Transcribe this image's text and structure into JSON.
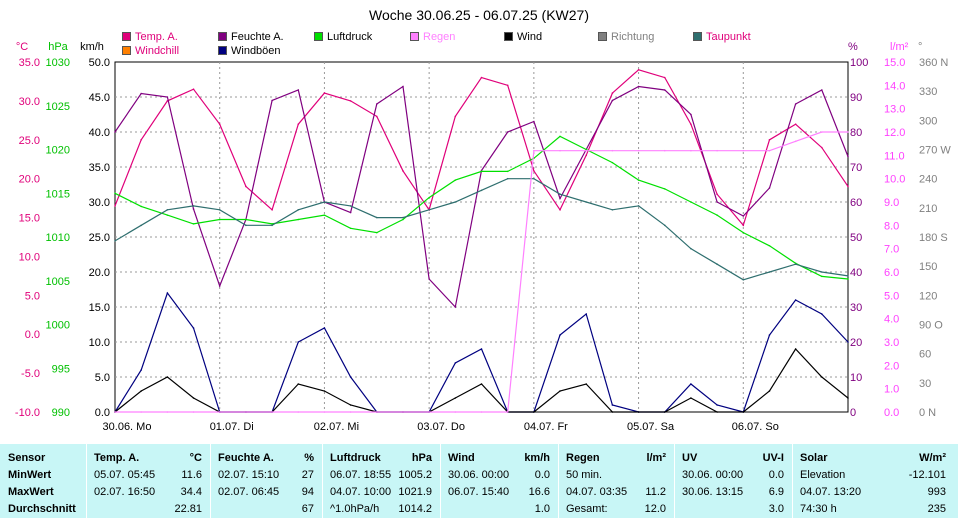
{
  "title": "Woche 30.06.25 - 06.07.25 (KW27)",
  "axis_units": {
    "temp": "°C",
    "hpa": "hPa",
    "kmh": "km/h",
    "pct": "%",
    "lm2": "l/m²",
    "deg": "°"
  },
  "legend": [
    {
      "label": "Temp. A.",
      "color": "#e0007a",
      "text_color": "#e0007a"
    },
    {
      "label": "Feuchte A.",
      "color": "#800080",
      "text_color": "#000000"
    },
    {
      "label": "Luftdruck",
      "color": "#00e000",
      "text_color": "#000000"
    },
    {
      "label": "Regen",
      "color": "#ff80ff",
      "text_color": "#ff80ff"
    },
    {
      "label": "Wind",
      "color": "#000000",
      "text_color": "#000000"
    },
    {
      "label": "Richtung",
      "color": "#808080",
      "text_color": "#808080"
    },
    {
      "label": "Taupunkt",
      "color": "#2f6f6f",
      "text_color": "#e0007a"
    },
    {
      "label": "Windchill",
      "color": "#ff8000",
      "text_color": "#e0007a"
    },
    {
      "label": "Windböen",
      "color": "#000080",
      "text_color": "#000000"
    }
  ],
  "chart_data": {
    "type": "line",
    "x_labels": [
      "30.06. Mo",
      "01.07. Di",
      "02.07. Mi",
      "03.07. Do",
      "04.07. Fr",
      "05.07. Sa",
      "06.07. So"
    ],
    "axes": {
      "temp": {
        "ticks": [
          "35.0",
          "30.0",
          "25.0",
          "20.0",
          "15.0",
          "10.0",
          "5.0",
          "0.0",
          "-5.0",
          "-10.0"
        ],
        "range": [
          -10,
          35
        ]
      },
      "hpa": {
        "ticks": [
          "1030",
          "1025",
          "1020",
          "1015",
          "1010",
          "1005",
          "1000",
          "995",
          "990"
        ],
        "range": [
          990,
          1030
        ]
      },
      "kmh": {
        "ticks": [
          "50.0",
          "45.0",
          "40.0",
          "35.0",
          "30.0",
          "25.0",
          "20.0",
          "15.0",
          "10.0",
          "5.0",
          "0.0"
        ],
        "range": [
          0,
          50
        ]
      },
      "pct": {
        "ticks": [
          "100",
          "90",
          "80",
          "70",
          "60",
          "50",
          "40",
          "30",
          "20",
          "10",
          "0"
        ],
        "range": [
          0,
          100
        ]
      },
      "lm2": {
        "ticks": [
          "15.0",
          "14.0",
          "13.0",
          "12.0",
          "11.0",
          "10.0",
          "9.0",
          "8.0",
          "7.0",
          "6.0",
          "5.0",
          "4.0",
          "3.0",
          "2.0",
          "1.0",
          "0.0"
        ],
        "range": [
          0,
          15
        ]
      },
      "deg": {
        "ticks": [
          "360 N",
          "330",
          "300",
          "270 W",
          "240",
          "210",
          "180 S",
          "150",
          "120",
          "90 O",
          "60",
          "30",
          "0 N"
        ],
        "range": [
          0,
          360
        ]
      }
    },
    "x_hours": [
      0,
      6,
      12,
      18,
      24,
      30,
      36,
      42,
      48,
      54,
      60,
      66,
      72,
      78,
      84,
      90,
      96,
      102,
      108,
      114,
      120,
      126,
      132,
      138,
      144,
      150,
      156,
      162,
      168
    ],
    "series": [
      {
        "name": "Temp. A.",
        "axis": "temp",
        "color": "#e0007a",
        "y": [
          16.5,
          25,
          30,
          31.5,
          27,
          19,
          16,
          27,
          31,
          30,
          28,
          21,
          16,
          28,
          33,
          32,
          21,
          16,
          23,
          31,
          34,
          33,
          27,
          18,
          14,
          25,
          27,
          24,
          19
        ]
      },
      {
        "name": "Feuchte A.",
        "axis": "pct",
        "color": "#800080",
        "y": [
          80,
          91,
          90,
          58,
          36,
          55,
          89,
          92,
          60,
          57,
          88,
          93,
          38,
          30,
          69,
          80,
          83,
          61,
          75,
          89,
          93,
          92,
          85,
          60,
          56,
          64,
          88,
          92,
          73
        ]
      },
      {
        "name": "Luftdruck",
        "axis": "hpa",
        "color": "#00e000",
        "y": [
          1015,
          1013.5,
          1012.5,
          1011.5,
          1012,
          1012,
          1011.5,
          1012,
          1012.5,
          1011,
          1010.5,
          1012,
          1014.5,
          1016.5,
          1017.5,
          1017.5,
          1019,
          1021.5,
          1020,
          1018.5,
          1016.5,
          1015.5,
          1014,
          1012.5,
          1010.5,
          1009,
          1007,
          1005.5,
          1005.2
        ]
      },
      {
        "name": "Taupunkt",
        "axis": "temp",
        "color": "#2f6f6f",
        "y": [
          12,
          14,
          16,
          16.5,
          16,
          14,
          14,
          16,
          17,
          16.5,
          15,
          15,
          16,
          17,
          18.5,
          20,
          20,
          18,
          17,
          16,
          16.5,
          14,
          11,
          9,
          7,
          8,
          9,
          8,
          7.5
        ]
      },
      {
        "name": "Windböen",
        "axis": "kmh",
        "color": "#000080",
        "y": [
          0,
          6,
          17,
          12,
          0,
          0,
          0,
          10,
          12,
          5,
          0,
          0,
          0,
          7,
          9,
          0,
          0,
          11,
          14,
          1,
          0,
          0,
          4,
          1,
          0,
          11,
          16,
          14,
          10
        ]
      },
      {
        "name": "Wind",
        "axis": "kmh",
        "color": "#000000",
        "y": [
          0,
          3,
          5,
          2,
          0,
          0,
          0,
          4,
          3,
          1,
          0,
          0,
          0,
          2,
          4,
          0,
          0,
          3,
          4,
          0,
          0,
          0,
          2,
          0,
          0,
          3,
          9,
          5,
          2
        ]
      },
      {
        "name": "Regen",
        "axis": "lm2",
        "color": "#ff80ff",
        "y": [
          0,
          0,
          0,
          0,
          0,
          0,
          0,
          0,
          0,
          0,
          0,
          0,
          0,
          0,
          0,
          0,
          11.2,
          11.2,
          11.2,
          11.2,
          11.2,
          11.2,
          11.2,
          11.2,
          11.2,
          11.2,
          11.6,
          12,
          12
        ]
      }
    ]
  },
  "summary": {
    "row_labels": [
      "Sensor",
      "MinWert",
      "MaxWert",
      "Durchschnitt"
    ],
    "columns": [
      {
        "name": "Temp. A.",
        "unit": "°C",
        "rows": [
          [
            "05.07. 05:45",
            "11.6"
          ],
          [
            "02.07. 16:50",
            "34.4"
          ],
          [
            "",
            "22.81"
          ]
        ]
      },
      {
        "name": "Feuchte A.",
        "unit": "%",
        "rows": [
          [
            "02.07. 15:10",
            "27"
          ],
          [
            "02.07. 06:45",
            "94"
          ],
          [
            "",
            "67"
          ]
        ]
      },
      {
        "name": "Luftdruck",
        "unit": "hPa",
        "rows": [
          [
            "06.07. 18:55",
            "1005.2"
          ],
          [
            "04.07. 10:00",
            "1021.9"
          ],
          [
            "^1.0hPa/h",
            "1014.2"
          ]
        ]
      },
      {
        "name": "Wind",
        "unit": "km/h",
        "rows": [
          [
            "30.06. 00:00",
            "0.0"
          ],
          [
            "06.07. 15:40",
            "16.6"
          ],
          [
            "",
            "1.0"
          ]
        ]
      },
      {
        "name": "Regen",
        "unit": "l/m²",
        "rows": [
          [
            "50 min.",
            ""
          ],
          [
            "04.07. 03:35",
            "11.2"
          ],
          [
            "Gesamt:",
            "12.0"
          ]
        ]
      },
      {
        "name": "UV",
        "unit": "UV-I",
        "rows": [
          [
            "30.06. 00:00",
            "0.0"
          ],
          [
            "30.06. 13:15",
            "6.9"
          ],
          [
            "",
            "3.0"
          ]
        ]
      },
      {
        "name": "Solar",
        "unit": "W/m²",
        "rows": [
          [
            "Elevation",
            "-12.101"
          ],
          [
            "04.07. 13:20",
            "993"
          ],
          [
            "74:30 h",
            "235"
          ]
        ]
      }
    ]
  }
}
